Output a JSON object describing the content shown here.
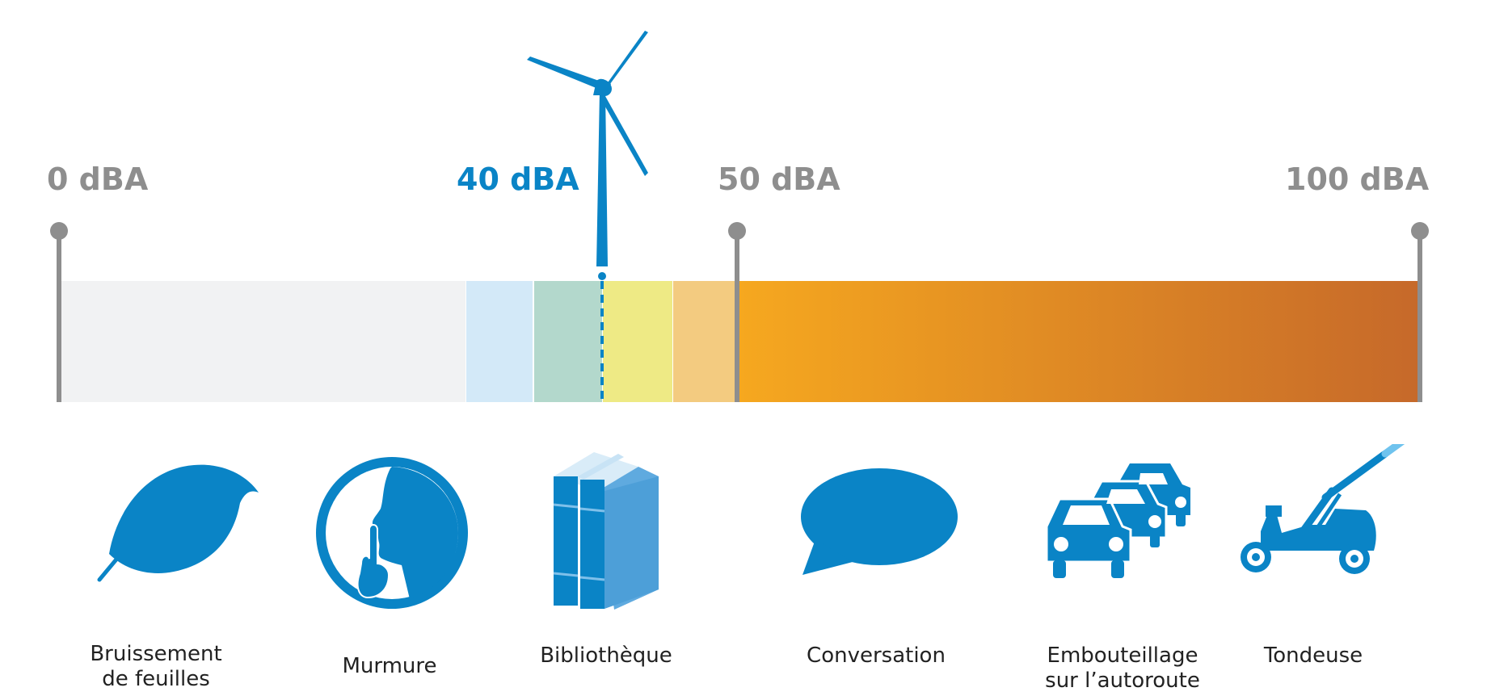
{
  "scale": {
    "ticks": [
      {
        "label": "0 dBA",
        "value": 0
      },
      {
        "label": "40 dBA",
        "value": 40,
        "highlight": true
      },
      {
        "label": "50 dBA",
        "value": 50
      },
      {
        "label": "100 dBA",
        "value": 100
      }
    ]
  },
  "colors": {
    "accent": "#0a84c6",
    "tick": "#8e8e8e",
    "band_quiet": "#f1f2f3",
    "band_light_blue": "#d3e9f8",
    "band_green": "#b3d8cc",
    "band_yellow": "#eeea85",
    "band_peach": "#f3cb80",
    "gradient_start": "#f6a81f",
    "gradient_end": "#c6692a"
  },
  "examples": [
    {
      "label_line1": "Bruissement",
      "label_line2": "de feuilles",
      "icon": "leaf-icon"
    },
    {
      "label_line1": "Murmure",
      "label_line2": "",
      "icon": "shush-icon"
    },
    {
      "label_line1": "Bibliothèque",
      "label_line2": "",
      "icon": "books-icon"
    },
    {
      "label_line1": "Conversation",
      "label_line2": "",
      "icon": "speech-bubble-icon"
    },
    {
      "label_line1": "Embouteillage",
      "label_line2": "sur l’autoroute",
      "icon": "traffic-jam-icon"
    },
    {
      "label_line1": "Tondeuse",
      "label_line2": "",
      "icon": "lawn-mower-icon"
    }
  ],
  "turbine": {
    "icon": "wind-turbine-icon"
  }
}
